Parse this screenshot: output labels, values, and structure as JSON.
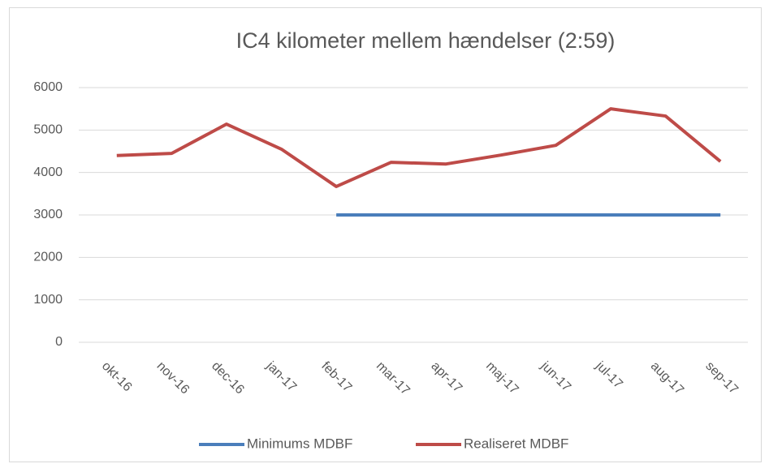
{
  "chart_data": {
    "type": "line",
    "title": "IC4 kilometer mellem hændelser (2:59)",
    "categories": [
      "okt-16",
      "nov-16",
      "dec-16",
      "jan-17",
      "feb-17",
      "mar-17",
      "apr-17",
      "maj-17",
      "jun-17",
      "jul-17",
      "aug-17",
      "sep-17"
    ],
    "series": [
      {
        "name": "Minimums MDBF",
        "color": "#4a7ebb",
        "values": [
          null,
          null,
          null,
          null,
          3000,
          3000,
          3000,
          3000,
          3000,
          3000,
          3000,
          3000
        ]
      },
      {
        "name": "Realiseret MDBF",
        "color": "#be4b48",
        "values": [
          4400,
          4450,
          5140,
          4550,
          3670,
          4240,
          4200,
          4410,
          4640,
          5500,
          5330,
          4260
        ]
      }
    ],
    "ylim": [
      0,
      6000
    ],
    "yticks": [
      0,
      1000,
      2000,
      3000,
      4000,
      5000,
      6000
    ],
    "grid": true,
    "legend": "bottom"
  }
}
